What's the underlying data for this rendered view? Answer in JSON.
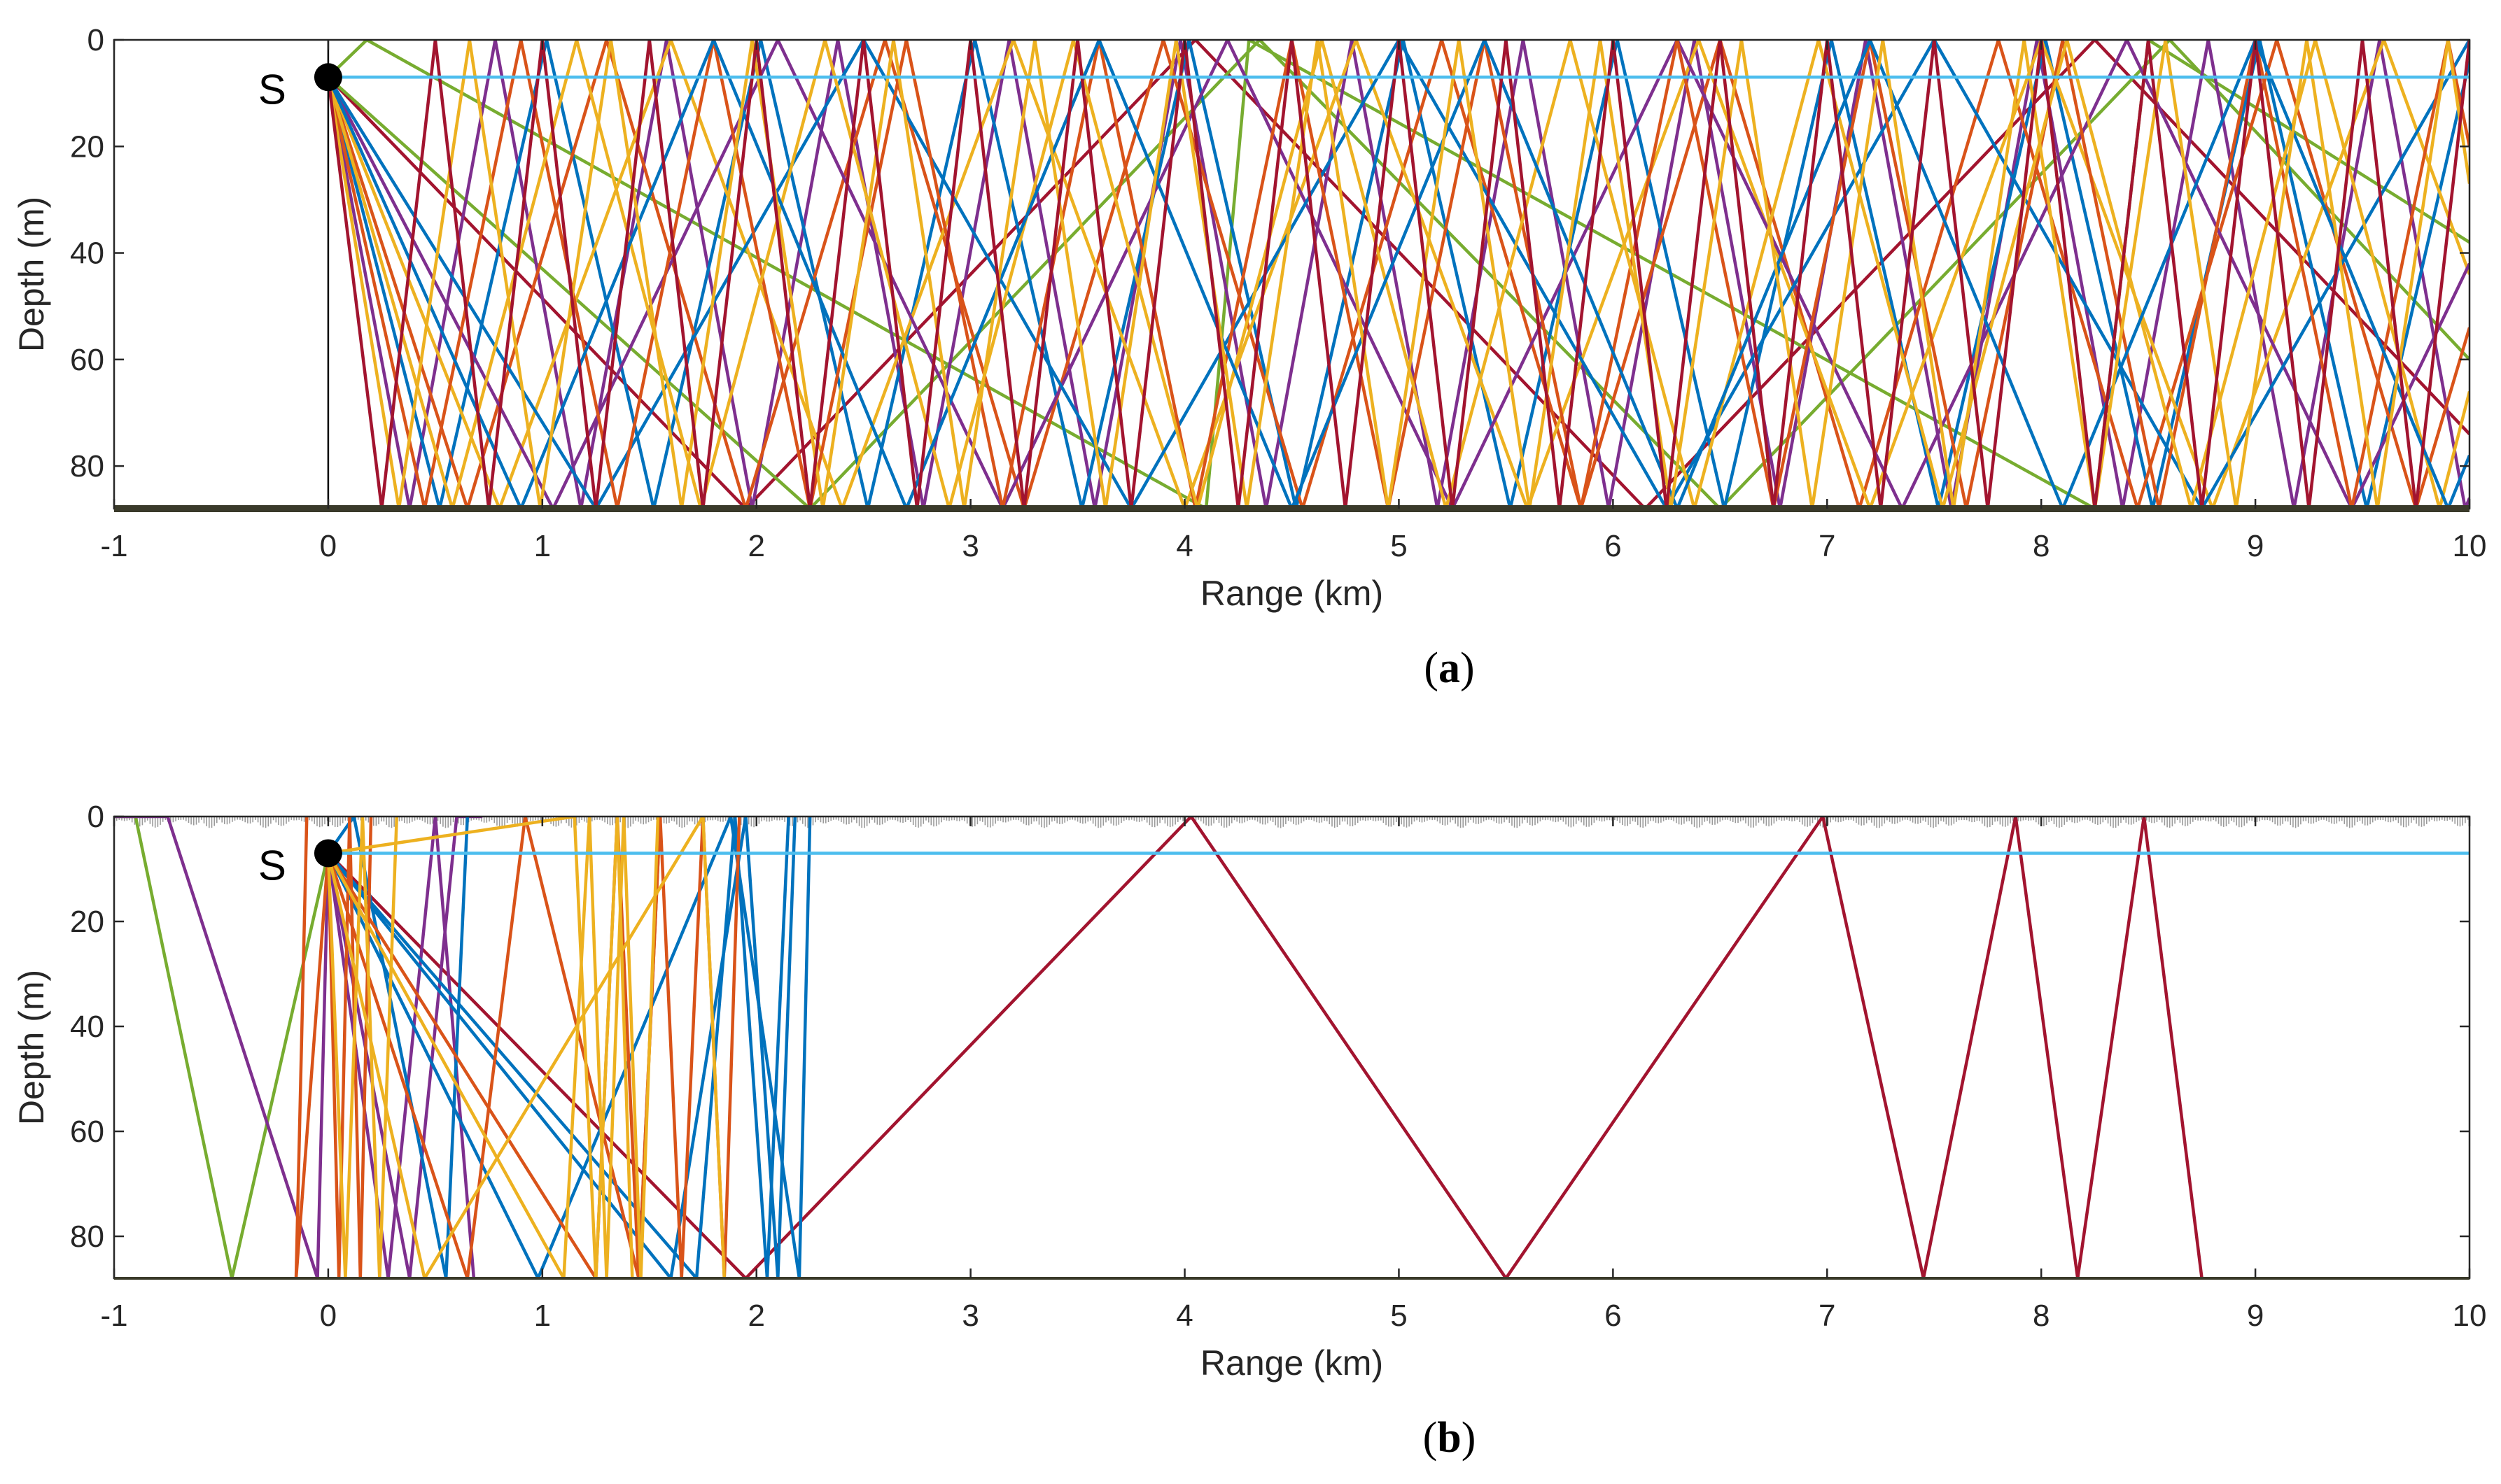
{
  "colors": {
    "ray_blue": "#0072BD",
    "ray_orange": "#D95319",
    "ray_yellow": "#EDB120",
    "ray_purple": "#7E2F8E",
    "ray_green": "#77AC30",
    "ray_red": "#A2142F",
    "receiver_line": "#4DBEEE",
    "source_dot": "#000000",
    "seabed_line": "#3A3A2A",
    "surface_rough": "#9A9A9A"
  },
  "chart_data": [
    {
      "type": "line",
      "caption": "a",
      "xlabel": "Range (km)",
      "ylabel": "Depth (m)",
      "xlim": [
        -1,
        10
      ],
      "ylim": [
        0,
        88
      ],
      "y_reversed": true,
      "xticks": [
        -1,
        0,
        1,
        2,
        3,
        4,
        5,
        6,
        7,
        8,
        9,
        10
      ],
      "yticks": [
        0,
        20,
        40,
        60,
        80
      ],
      "source": {
        "label": "S",
        "x": 0,
        "y": 7
      },
      "receiver_depth": 7,
      "water_depth": 88,
      "surface": "flat",
      "seabed": "thick",
      "rays": [
        {
          "color": "ray_red",
          "x": [
            0,
            1.95,
            4.05,
            6.15,
            8.25,
            10
          ],
          "y": [
            7,
            88,
            0,
            88,
            0,
            74
          ]
        },
        {
          "color": "ray_green",
          "x": [
            0,
            2.25,
            4.35,
            6.5,
            8.6,
            10
          ],
          "y": [
            7,
            88,
            0,
            88,
            0,
            60
          ]
        },
        {
          "color": "ray_green",
          "x": [
            0,
            0.18,
            4.1,
            4.3,
            8.25,
            8.5,
            10
          ],
          "y": [
            7,
            0,
            88,
            0,
            88,
            0,
            38
          ]
        },
        {
          "color": "ray_purple",
          "x": [
            0,
            0.38,
            0.78,
            1.18,
            1.58,
            1.98,
            2.38,
            2.78,
            3.18,
            3.58,
            3.98,
            4.38,
            4.78,
            5.18,
            5.58,
            5.98,
            6.38,
            6.78,
            7.18,
            7.58,
            7.98,
            8.38,
            8.78,
            9.18,
            9.58,
            9.98,
            10
          ],
          "y": [
            7,
            88,
            0,
            88,
            0,
            88,
            0,
            88,
            0,
            88,
            0,
            88,
            0,
            88,
            0,
            88,
            0,
            88,
            0,
            88,
            0,
            88,
            0,
            88,
            0,
            88,
            86
          ]
        },
        {
          "color": "ray_blue",
          "x": [
            0,
            0.52,
            1.02,
            1.52,
            2.02,
            2.52,
            3.02,
            3.52,
            4.02,
            4.52,
            5.02,
            5.52,
            6.02,
            6.52,
            7.02,
            7.52,
            8.02,
            8.52,
            9.02,
            9.52,
            10
          ],
          "y": [
            7,
            88,
            0,
            88,
            0,
            88,
            0,
            88,
            0,
            88,
            0,
            88,
            0,
            88,
            0,
            88,
            0,
            88,
            0,
            88,
            4
          ]
        },
        {
          "color": "ray_orange",
          "x": [
            0,
            0.65,
            1.3,
            1.95,
            2.6,
            3.25,
            3.9,
            4.55,
            5.2,
            5.85,
            6.5,
            7.15,
            7.8,
            8.45,
            9.1,
            9.75,
            10
          ],
          "y": [
            7,
            88,
            0,
            88,
            0,
            88,
            0,
            88,
            0,
            88,
            0,
            88,
            0,
            88,
            0,
            88,
            54
          ]
        },
        {
          "color": "ray_yellow",
          "x": [
            0,
            0.8,
            1.6,
            2.4,
            3.2,
            4.0,
            4.8,
            5.6,
            6.4,
            7.2,
            8.0,
            8.8,
            9.6,
            10
          ],
          "y": [
            7,
            88,
            0,
            88,
            0,
            88,
            0,
            88,
            0,
            88,
            0,
            88,
            0,
            44
          ]
        },
        {
          "color": "ray_purple",
          "x": [
            0,
            1.05,
            2.1,
            3.15,
            4.2,
            5.25,
            6.3,
            7.35,
            8.4,
            9.45,
            10
          ],
          "y": [
            7,
            88,
            0,
            88,
            0,
            88,
            0,
            88,
            0,
            88,
            42
          ]
        },
        {
          "color": "ray_blue",
          "x": [
            0,
            1.25,
            2.5,
            3.75,
            5.0,
            6.25,
            7.5,
            8.75,
            10
          ],
          "y": [
            7,
            88,
            0,
            88,
            0,
            88,
            0,
            88,
            0
          ]
        },
        {
          "color": "ray_orange",
          "x": [
            0,
            0.45,
            0.9,
            1.35,
            1.8,
            2.25,
            2.7,
            3.15,
            3.6,
            4.05,
            4.5,
            4.95,
            5.4,
            5.85,
            6.3,
            6.75,
            7.2,
            7.65,
            8.1,
            8.55,
            9.0,
            9.45,
            9.9,
            10
          ],
          "y": [
            7,
            88,
            0,
            88,
            0,
            88,
            0,
            88,
            0,
            88,
            0,
            88,
            0,
            88,
            0,
            88,
            0,
            88,
            0,
            88,
            0,
            88,
            0,
            20
          ]
        },
        {
          "color": "ray_yellow",
          "x": [
            0,
            0.58,
            1.16,
            1.74,
            2.32,
            2.9,
            3.48,
            4.06,
            4.64,
            5.22,
            5.8,
            6.38,
            6.96,
            7.54,
            8.12,
            8.7,
            9.28,
            9.86,
            10
          ],
          "y": [
            7,
            88,
            0,
            88,
            0,
            88,
            0,
            88,
            0,
            88,
            0,
            88,
            0,
            88,
            0,
            88,
            0,
            88,
            66
          ]
        },
        {
          "color": "ray_blue",
          "x": [
            0,
            0.9,
            1.8,
            2.7,
            3.6,
            4.5,
            5.4,
            6.3,
            7.2,
            8.1,
            9.0,
            9.9,
            10
          ],
          "y": [
            7,
            88,
            0,
            88,
            0,
            88,
            0,
            88,
            0,
            88,
            0,
            88,
            78
          ]
        },
        {
          "color": "ray_yellow",
          "x": [
            0,
            0.33,
            0.66,
            0.99,
            1.32,
            1.65,
            1.98,
            2.31,
            2.64,
            2.97,
            3.3,
            3.63,
            3.96,
            4.29,
            4.62,
            4.95,
            5.28,
            5.61,
            5.94,
            6.27,
            6.6,
            6.93,
            7.26,
            7.59,
            7.92,
            8.25,
            8.58,
            8.91,
            9.24,
            9.57,
            9.9,
            10
          ],
          "y": [
            7,
            88,
            0,
            88,
            0,
            88,
            0,
            88,
            0,
            88,
            0,
            88,
            0,
            88,
            0,
            88,
            0,
            88,
            0,
            88,
            0,
            88,
            0,
            88,
            0,
            88,
            0,
            88,
            0,
            88,
            0,
            27
          ]
        },
        {
          "color": "ray_red",
          "x": [
            0,
            0.25,
            0.5,
            0.75,
            1.0,
            1.25,
            1.5,
            1.75,
            2.0,
            2.25,
            2.5,
            2.75,
            3.0,
            3.25,
            3.5,
            3.75,
            4.0,
            4.25,
            4.5,
            4.75,
            5.0,
            5.25,
            5.5,
            5.75,
            6.0,
            6.25,
            6.5,
            6.75,
            7.0,
            7.25,
            7.5,
            7.75,
            8.0,
            8.25,
            8.5,
            8.75,
            9.0,
            9.25,
            9.5,
            9.75,
            10
          ],
          "y": [
            7,
            88,
            0,
            88,
            0,
            88,
            0,
            88,
            0,
            88,
            0,
            88,
            0,
            88,
            0,
            88,
            0,
            88,
            0,
            88,
            0,
            88,
            0,
            88,
            0,
            88,
            0,
            88,
            0,
            88,
            0,
            88,
            0,
            88,
            0,
            88,
            0,
            88,
            0,
            88,
            0
          ]
        }
      ]
    },
    {
      "type": "line",
      "caption": "b",
      "xlabel": "Range (km)",
      "ylabel": "Depth (m)",
      "xlim": [
        -1,
        10
      ],
      "ylim": [
        0,
        88
      ],
      "y_reversed": true,
      "xticks": [
        -1,
        0,
        1,
        2,
        3,
        4,
        5,
        6,
        7,
        8,
        9,
        10
      ],
      "yticks": [
        0,
        20,
        40,
        60,
        80
      ],
      "source": {
        "label": "S",
        "x": 0,
        "y": 7
      },
      "receiver_depth": 7,
      "water_depth": 88,
      "surface": "rough",
      "seabed": "thin",
      "rays": [
        {
          "color": "ray_red",
          "x": [
            0,
            1.95,
            4.03,
            5.5,
            6.98,
            7.45,
            7.88,
            8.17,
            8.48,
            8.75
          ],
          "y": [
            7,
            88,
            0,
            88,
            0,
            88,
            0,
            88,
            0,
            88
          ]
        },
        {
          "color": "ray_green",
          "x": [
            0,
            -0.45,
            -0.9,
            -1.0
          ],
          "y": [
            7,
            88,
            0,
            0
          ]
        },
        {
          "color": "ray_purple",
          "x": [
            0,
            -0.05,
            -0.75,
            -1.0
          ],
          "y": [
            7,
            88,
            0,
            0
          ]
        },
        {
          "color": "ray_purple",
          "x": [
            0,
            0.38,
            0.6,
            0.72
          ],
          "y": [
            7,
            88,
            0,
            0
          ]
        },
        {
          "color": "ray_purple",
          "x": [
            0,
            0.28,
            0.5,
            0.68
          ],
          "y": [
            7,
            88,
            0,
            88
          ]
        },
        {
          "color": "ray_blue",
          "x": [
            0,
            0.98,
            1.88,
            2.2,
            2.25
          ],
          "y": [
            7,
            88,
            0,
            88,
            0
          ]
        },
        {
          "color": "ray_blue",
          "x": [
            0,
            0.12,
            0.55,
            0.65
          ],
          "y": [
            7,
            0,
            88,
            0
          ]
        },
        {
          "color": "ray_blue",
          "x": [
            0,
            1.6,
            1.95,
            2.1,
            2.18
          ],
          "y": [
            7,
            88,
            0,
            88,
            0
          ]
        },
        {
          "color": "ray_blue",
          "x": [
            0,
            1.72,
            1.9,
            2.05,
            2.15
          ],
          "y": [
            7,
            88,
            0,
            88,
            0
          ]
        },
        {
          "color": "ray_orange",
          "x": [
            0,
            0.05,
            0.1,
            0.15,
            0.2
          ],
          "y": [
            7,
            88,
            0,
            88,
            0
          ]
        },
        {
          "color": "ray_orange",
          "x": [
            0,
            1.25,
            1.35,
            1.45,
            1.55,
            1.65,
            1.75,
            1.85,
            1.92
          ],
          "y": [
            7,
            88,
            0,
            88,
            0,
            88,
            0,
            88,
            0
          ]
        },
        {
          "color": "ray_orange",
          "x": [
            0,
            0.65,
            0.92,
            1.45,
            1.55
          ],
          "y": [
            7,
            88,
            0,
            88,
            0
          ]
        },
        {
          "color": "ray_orange",
          "x": [
            0,
            -0.15,
            -0.1
          ],
          "y": [
            7,
            88,
            0
          ]
        },
        {
          "color": "ray_yellow",
          "x": [
            0,
            0.08,
            0.16,
            0.24,
            0.32
          ],
          "y": [
            7,
            88,
            0,
            88,
            0
          ]
        },
        {
          "color": "ray_yellow",
          "x": [
            0,
            1.1,
            1.22,
            1.3,
            1.38,
            1.46,
            1.54
          ],
          "y": [
            7,
            88,
            0,
            88,
            0,
            88,
            0
          ]
        },
        {
          "color": "ray_yellow",
          "x": [
            0,
            0.45,
            1.75,
            1.85
          ],
          "y": [
            7,
            88,
            0,
            88
          ]
        },
        {
          "color": "ray_yellow",
          "x": [
            0,
            1.15,
            1.25,
            1.35,
            1.42
          ],
          "y": [
            7,
            0,
            88,
            0,
            88
          ]
        }
      ]
    }
  ]
}
